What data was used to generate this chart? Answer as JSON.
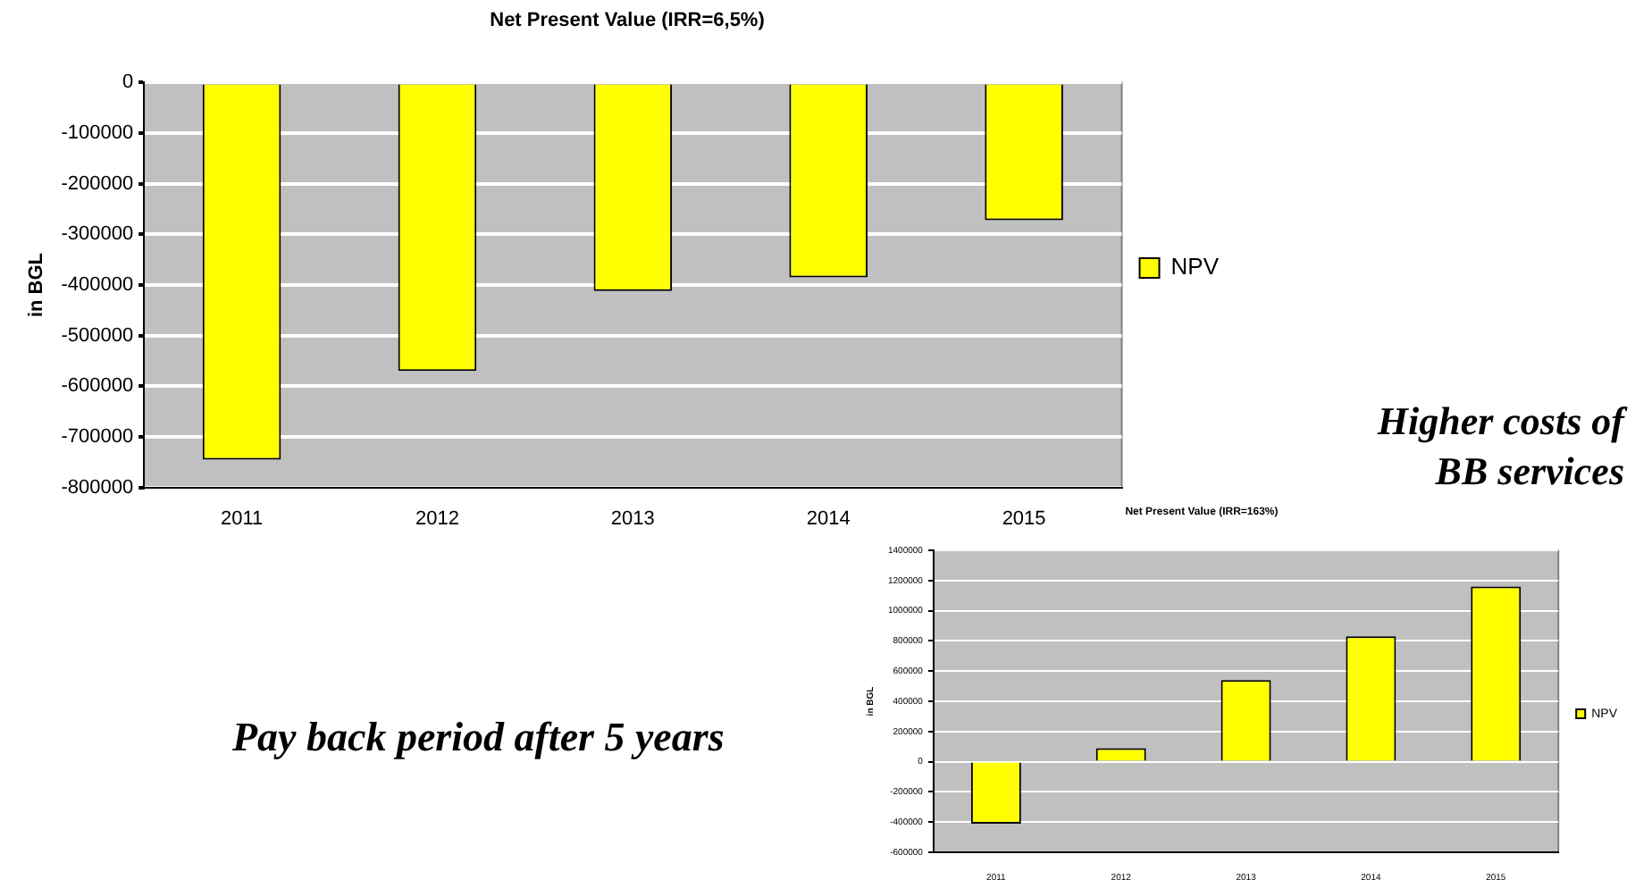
{
  "chart_data": [
    {
      "type": "bar",
      "title": "Net Present Value (IRR=6,5%)",
      "ylabel": "in BGL",
      "categories": [
        "2011",
        "2012",
        "2013",
        "2014",
        "2015"
      ],
      "series": [
        {
          "name": "NPV",
          "color": "#ffff00",
          "values": [
            -745000,
            -570000,
            -412000,
            -385000,
            -272000
          ]
        }
      ],
      "ylim": [
        -800000,
        0
      ],
      "yticks": [
        -800000,
        -700000,
        -600000,
        -500000,
        -400000,
        -300000,
        -200000,
        -100000,
        0
      ],
      "grid": "y",
      "legend": "right"
    },
    {
      "type": "bar",
      "title": "Net Present Value (IRR=163%)",
      "ylabel": "in BGL",
      "categories": [
        "2011",
        "2012",
        "2013",
        "2014",
        "2015"
      ],
      "series": [
        {
          "name": "NPV",
          "color": "#ffff00",
          "values": [
            -410000,
            90000,
            540000,
            830000,
            1160000
          ]
        }
      ],
      "ylim": [
        -600000,
        1400000
      ],
      "yticks": [
        -600000,
        -400000,
        -200000,
        0,
        200000,
        400000,
        600000,
        800000,
        1000000,
        1200000,
        1400000
      ],
      "grid": "y",
      "legend": "right",
      "annotations": [
        "Higher costs of BB services",
        "Pay back period after 5 years"
      ]
    }
  ]
}
